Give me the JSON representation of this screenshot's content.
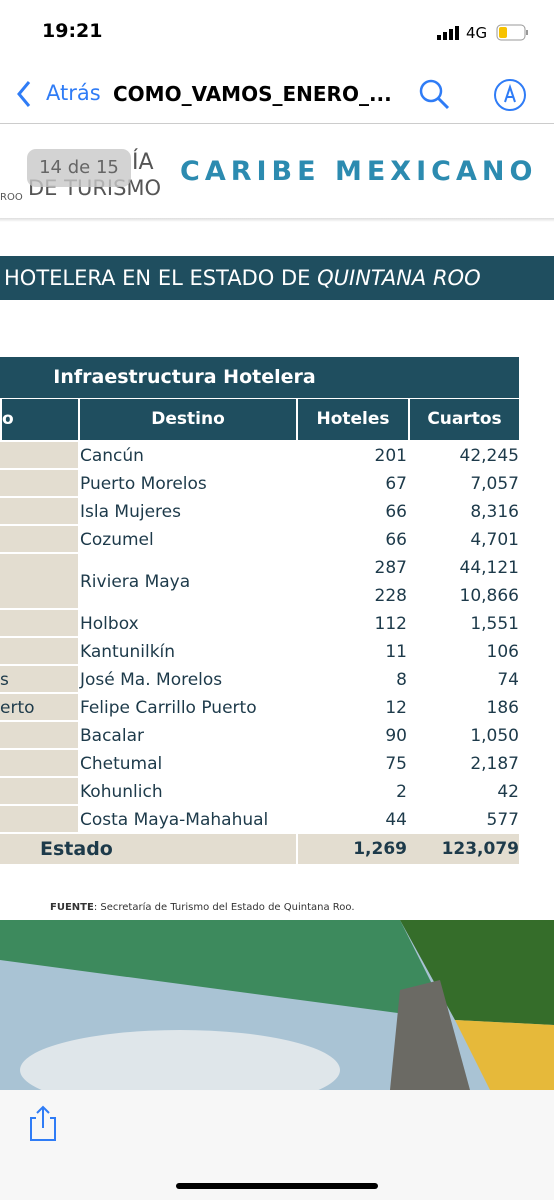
{
  "status_bar": {
    "time": "19:21",
    "network": "4G"
  },
  "nav_bar": {
    "back": "Atrás",
    "title": "COMO_VAMOS_ENERO_..."
  },
  "page_indicator": "14 de 15",
  "slide": {
    "header_left_top": "ÍA",
    "header_left_bottom": "DE TURISMO",
    "header_left_small": "ROO",
    "brand": "CARIBE MEXICANO",
    "banner": {
      "text": "HOTELERA EN EL ESTADO DE ",
      "emphasis": "QUINTANA ROO"
    },
    "table": {
      "title": "Infraestructura Hotelera",
      "headers": [
        "o",
        "Destino",
        "Hoteles",
        "Cuartos"
      ],
      "rows": [
        {
          "destino": "Cancún",
          "hoteles": [
            "201"
          ],
          "cuartos": [
            "42,245"
          ]
        },
        {
          "destino": "Puerto Morelos",
          "hoteles": [
            "67"
          ],
          "cuartos": [
            "7,057"
          ]
        },
        {
          "destino": "Isla Mujeres",
          "hoteles": [
            "66"
          ],
          "cuartos": [
            "8,316"
          ]
        },
        {
          "destino": "Cozumel",
          "hoteles": [
            "66"
          ],
          "cuartos": [
            "4,701"
          ]
        },
        {
          "destino": "Riviera Maya",
          "hoteles": [
            "287",
            "228"
          ],
          "cuartos": [
            "44,121",
            "10,866"
          ]
        },
        {
          "destino": "Holbox",
          "hoteles": [
            "112"
          ],
          "cuartos": [
            "1,551"
          ]
        },
        {
          "destino": "Kantunilkín",
          "hoteles": [
            "11"
          ],
          "cuartos": [
            "106"
          ]
        },
        {
          "left": "s",
          "destino": "José Ma. Morelos",
          "hoteles": [
            "8"
          ],
          "cuartos": [
            "74"
          ]
        },
        {
          "left": "erto",
          "destino": "Felipe Carrillo Puerto",
          "hoteles": [
            "12"
          ],
          "cuartos": [
            "186"
          ]
        },
        {
          "destino": "Bacalar",
          "hoteles": [
            "90"
          ],
          "cuartos": [
            "1,050"
          ]
        },
        {
          "destino": "Chetumal",
          "hoteles": [
            "75"
          ],
          "cuartos": [
            "2,187"
          ]
        },
        {
          "destino": "Kohunlich",
          "hoteles": [
            "2"
          ],
          "cuartos": [
            "42"
          ]
        },
        {
          "destino": "Costa Maya-Mahahual",
          "hoteles": [
            "44"
          ],
          "cuartos": [
            "577"
          ]
        }
      ],
      "total": {
        "label": "Estado",
        "hoteles": "1,269",
        "cuartos": "123,079"
      }
    },
    "source": {
      "label": "FUENTE",
      "text": ": Secretaría de Turismo del Estado de Quintana Roo."
    }
  }
}
